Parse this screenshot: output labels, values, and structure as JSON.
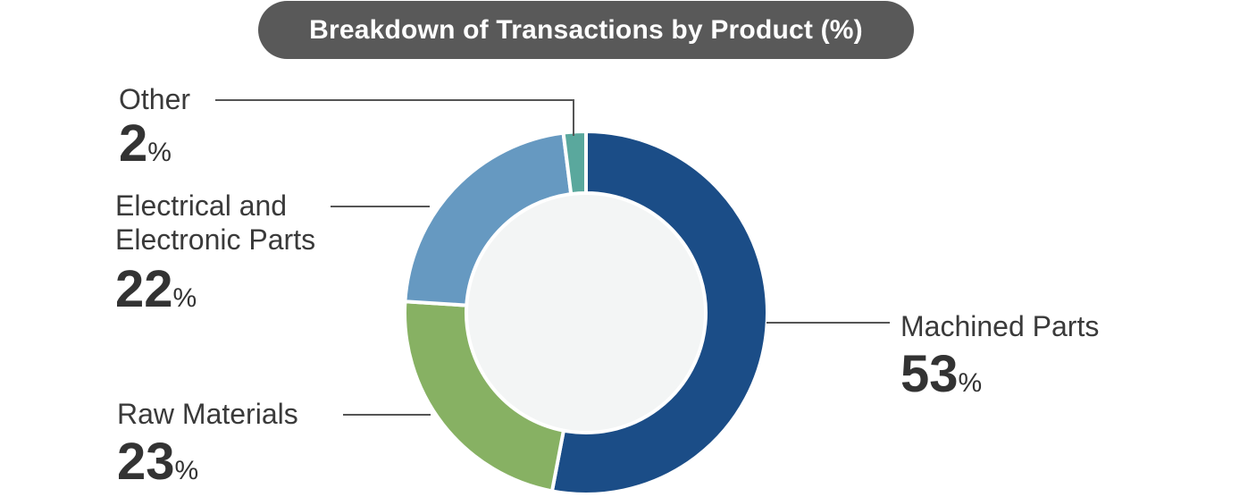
{
  "chart_data": {
    "type": "pie",
    "title": "Breakdown of Transactions by Product (%)",
    "donut": true,
    "unit": "%",
    "slices": [
      {
        "label": "Machined Parts",
        "value": 53,
        "color": "#1b4d87"
      },
      {
        "label": "Raw Materials",
        "value": 23,
        "color": "#87b163"
      },
      {
        "label": "Electrical and Electronic Parts",
        "value": 22,
        "color": "#6699c1"
      },
      {
        "label": "Other",
        "value": 2,
        "color": "#5aa89d"
      }
    ],
    "center_color": "#f3f5f5",
    "leader_line_color": "#555555"
  }
}
